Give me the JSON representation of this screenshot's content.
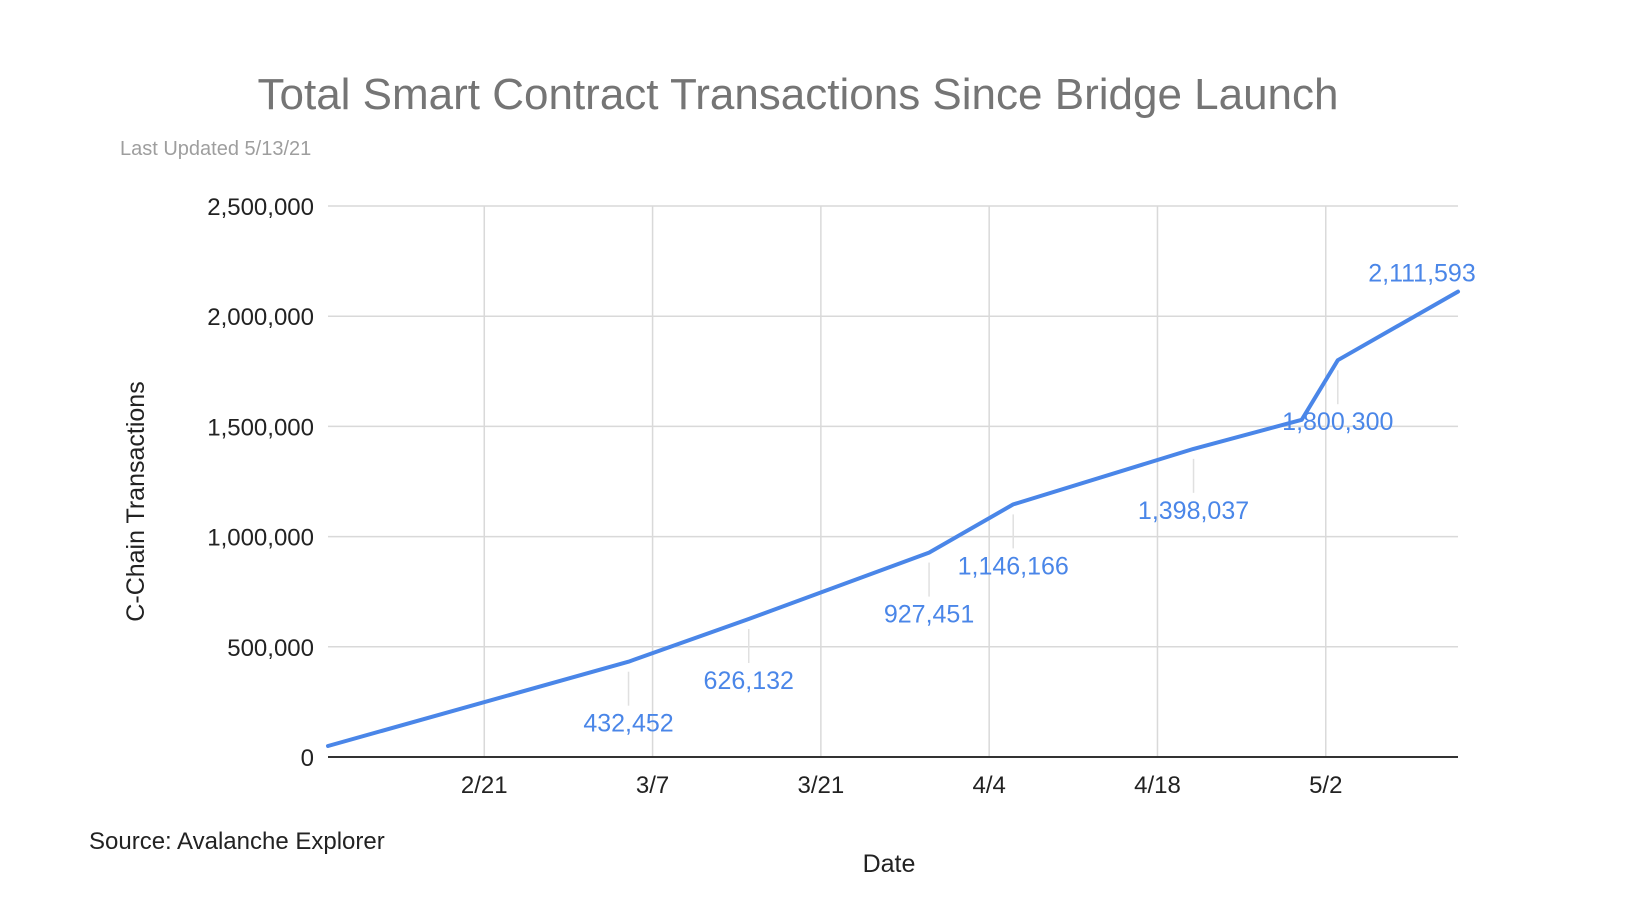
{
  "chart_data": {
    "type": "line",
    "title": "Total Smart Contract Transactions Since Bridge Launch",
    "subtitle": "Last Updated 5/13/21",
    "source": "Source: Avalanche Explorer",
    "xlabel": "Date",
    "ylabel": "C-Chain Transactions",
    "ylim": [
      0,
      2500000
    ],
    "y_ticks": [
      {
        "value": 0,
        "label": "0"
      },
      {
        "value": 500000,
        "label": "500,000"
      },
      {
        "value": 1000000,
        "label": "1,000,000"
      },
      {
        "value": 1500000,
        "label": "1,500,000"
      },
      {
        "value": 2000000,
        "label": "2,000,000"
      },
      {
        "value": 2500000,
        "label": "2,500,000"
      }
    ],
    "xlim": [
      "2021-02-08",
      "2021-05-13"
    ],
    "x_ticks": [
      {
        "date": "2021-02-21",
        "label": "2/21"
      },
      {
        "date": "2021-03-07",
        "label": "3/7"
      },
      {
        "date": "2021-03-21",
        "label": "3/21"
      },
      {
        "date": "2021-04-04",
        "label": "4/4"
      },
      {
        "date": "2021-04-18",
        "label": "4/18"
      },
      {
        "date": "2021-05-02",
        "label": "5/2"
      }
    ],
    "grid": true,
    "line_color": "#4a86e8",
    "series": [
      {
        "points": [
          {
            "x": "2021-02-08",
            "y": 50000
          },
          {
            "x": "2021-03-05",
            "y": 432452
          },
          {
            "x": "2021-03-15",
            "y": 626132
          },
          {
            "x": "2021-03-30",
            "y": 927451
          },
          {
            "x": "2021-04-06",
            "y": 1146166
          },
          {
            "x": "2021-04-21",
            "y": 1398037
          },
          {
            "x": "2021-04-30",
            "y": 1530000
          },
          {
            "x": "2021-05-03",
            "y": 1800300
          },
          {
            "x": "2021-05-13",
            "y": 2111593
          }
        ]
      }
    ],
    "data_labels": [
      {
        "x": "2021-03-05",
        "y": 432452,
        "text": "432,452"
      },
      {
        "x": "2021-03-15",
        "y": 626132,
        "text": "626,132"
      },
      {
        "x": "2021-03-30",
        "y": 927451,
        "text": "927,451"
      },
      {
        "x": "2021-04-06",
        "y": 1146166,
        "text": "1,146,166"
      },
      {
        "x": "2021-04-21",
        "y": 1398037,
        "text": "1,398,037"
      },
      {
        "x": "2021-05-03",
        "y": 1800300,
        "text": "1,800,300"
      },
      {
        "x": "2021-05-13",
        "y": 2111593,
        "text": "2,111,593"
      }
    ]
  }
}
